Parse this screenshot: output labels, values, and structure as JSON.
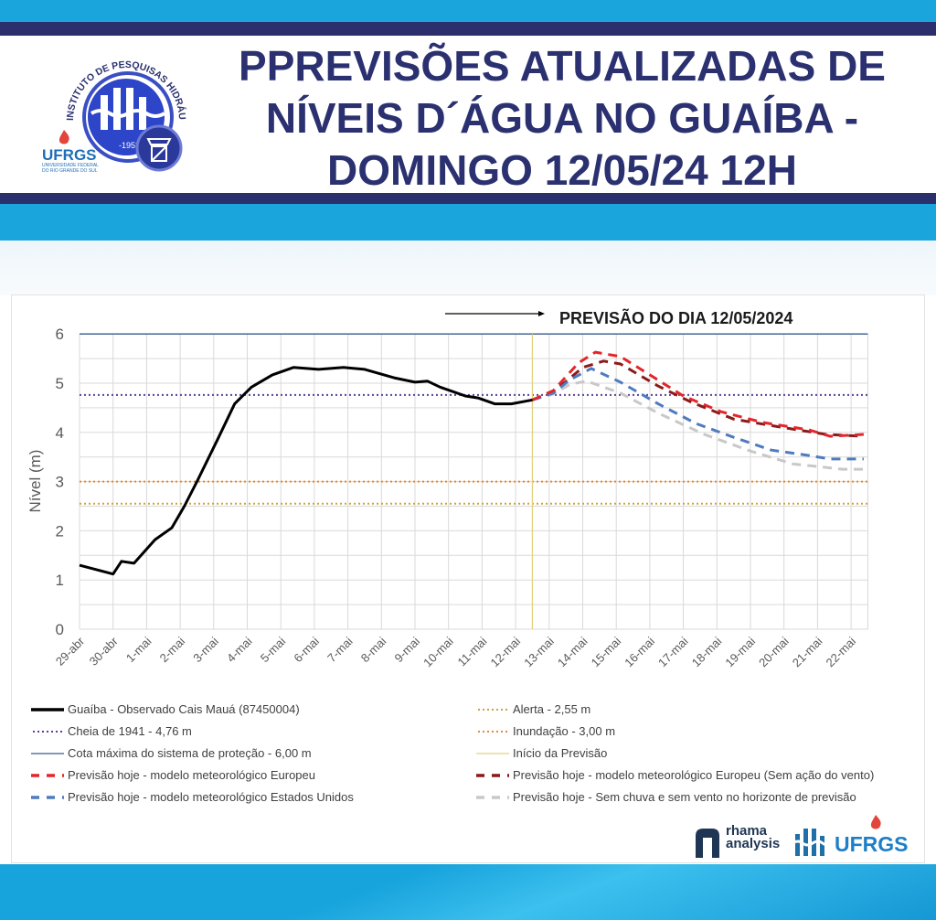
{
  "header": {
    "title_lines": [
      "PPREVISÕES ATUALIZADAS DE",
      "NÍVEIS D´ÁGUA NO GUAÍBA -",
      "DOMINGO 12/05/24 12H"
    ],
    "logo_iph": {
      "ring_text": "INSTITUTO DE PESQUISAS HIDRÁULICAS",
      "year": "-1953"
    },
    "logo_ufrgs": {
      "name": "UFRGS",
      "subtitle": "UNIVERSIDADE FEDERAL DO RIO GRANDE DO SUL"
    }
  },
  "footer": {
    "logo_rhama": [
      "rhama",
      "analysis"
    ],
    "logo_ufrgs": "UFRGS"
  },
  "colors": {
    "brand_cyan": "#1aa6dc",
    "brand_navy": "#2b2f6b",
    "observed": "#000000",
    "cheia_1941": "#5b3f99",
    "cota_maxima": "#3a5a8c",
    "alerta": "#c9a43a",
    "inundacao": "#e08a3c",
    "inicio_previsao": "#e3d27a",
    "europeu": "#e3262b",
    "europeu_sem_vento": "#8b1a1a",
    "estados_unidos": "#4f7bbf",
    "sem_chuva": "#c8c8c8"
  },
  "chart_data": {
    "type": "line",
    "annotation": "PREVISÃO DO DIA 12/05/2024",
    "ylabel": "Nível (m)",
    "xlabel": "",
    "ylim": [
      0,
      6
    ],
    "yticks": [
      "0",
      "1",
      "2",
      "3",
      "4",
      "5",
      "6"
    ],
    "xlim": [
      "2024-04-29 00:00",
      "2024-05-22 12:00"
    ],
    "xticks": [
      {
        "date": "2024-04-29",
        "label": "29-abr"
      },
      {
        "date": "2024-04-30",
        "label": "30-abr"
      },
      {
        "date": "2024-05-01",
        "label": "1-mai"
      },
      {
        "date": "2024-05-02",
        "label": "2-mai"
      },
      {
        "date": "2024-05-03",
        "label": "3-mai"
      },
      {
        "date": "2024-05-04",
        "label": "4-mai"
      },
      {
        "date": "2024-05-05",
        "label": "5-mai"
      },
      {
        "date": "2024-05-06",
        "label": "6-mai"
      },
      {
        "date": "2024-05-07",
        "label": "7-mai"
      },
      {
        "date": "2024-05-08",
        "label": "8-mai"
      },
      {
        "date": "2024-05-09",
        "label": "9-mai"
      },
      {
        "date": "2024-05-10",
        "label": "10-mai"
      },
      {
        "date": "2024-05-11",
        "label": "11-mai"
      },
      {
        "date": "2024-05-12",
        "label": "12-mai"
      },
      {
        "date": "2024-05-13",
        "label": "13-mai"
      },
      {
        "date": "2024-05-14",
        "label": "14-mai"
      },
      {
        "date": "2024-05-15",
        "label": "15-mai"
      },
      {
        "date": "2024-05-16",
        "label": "16-mai"
      },
      {
        "date": "2024-05-17",
        "label": "17-mai"
      },
      {
        "date": "2024-05-18",
        "label": "18-mai"
      },
      {
        "date": "2024-05-19",
        "label": "19-mai"
      },
      {
        "date": "2024-05-20",
        "label": "20-mai"
      },
      {
        "date": "2024-05-21",
        "label": "21-mai"
      },
      {
        "date": "2024-05-22",
        "label": "22-mai"
      }
    ],
    "grid": true,
    "legend_placement": "bottom",
    "reference_lines": [
      {
        "name": "Cheia de 1941 - 4,76 m",
        "y": 4.76,
        "style": "dotted",
        "color_key": "cheia_1941"
      },
      {
        "name": "Cota máxima do sistema de proteção - 6,00 m",
        "y": 6.0,
        "style": "solid",
        "color_key": "cota_maxima"
      },
      {
        "name": "Alerta  - 2,55 m",
        "y": 2.55,
        "style": "dotted",
        "color_key": "alerta"
      },
      {
        "name": "Inundação - 3,00 m",
        "y": 3.0,
        "style": "dotted",
        "color_key": "inundacao"
      },
      {
        "name": "Início da Previsão",
        "x": "2024-05-12 12:00",
        "style": "solid",
        "color_key": "inicio_previsao"
      }
    ],
    "series": [
      {
        "name": "Guaíba - Observado Cais Mauá (87450004)",
        "style": "solid",
        "color_key": "observed",
        "x": [
          "2024-04-29 00:00",
          "2024-04-30 00:00",
          "2024-04-30 06:00",
          "2024-04-30 15:00",
          "2024-05-01 06:00",
          "2024-05-01 18:00",
          "2024-05-02 03:00",
          "2024-05-02 12:00",
          "2024-05-03 03:00",
          "2024-05-03 15:00",
          "2024-05-04 03:00",
          "2024-05-04 18:00",
          "2024-05-05 09:00",
          "2024-05-06 03:00",
          "2024-05-06 21:00",
          "2024-05-07 12:00",
          "2024-05-08 09:00",
          "2024-05-09 00:00",
          "2024-05-09 09:00",
          "2024-05-09 18:00",
          "2024-05-10 12:00",
          "2024-05-10 21:00",
          "2024-05-11 09:00",
          "2024-05-11 21:00",
          "2024-05-12 12:00"
        ],
        "y": [
          1.3,
          1.12,
          1.38,
          1.34,
          1.82,
          2.06,
          2.5,
          3.0,
          3.87,
          4.58,
          4.92,
          5.17,
          5.32,
          5.28,
          5.32,
          5.28,
          5.11,
          5.02,
          5.04,
          4.92,
          4.74,
          4.7,
          4.58,
          4.58,
          4.66
        ]
      },
      {
        "name": "Previsão hoje - modelo meteorológico Europeu",
        "style": "dashed",
        "color_key": "europeu",
        "x": [
          "2024-05-12 12:00",
          "2024-05-13 03:00",
          "2024-05-13 21:00",
          "2024-05-14 09:00",
          "2024-05-15 03:00",
          "2024-05-16 00:00",
          "2024-05-17 00:00",
          "2024-05-18 03:00",
          "2024-05-19 09:00",
          "2024-05-20 18:00",
          "2024-05-21 09:00",
          "2024-05-22 09:00"
        ],
        "y": [
          4.66,
          4.85,
          5.41,
          5.63,
          5.54,
          5.17,
          4.74,
          4.42,
          4.2,
          4.05,
          3.92,
          3.96
        ]
      },
      {
        "name": "Previsão hoje - modelo meteorológico Estados Unidos",
        "style": "dashed",
        "color_key": "estados_unidos",
        "x": [
          "2024-05-12 12:00",
          "2024-05-13 03:00",
          "2024-05-13 15:00",
          "2024-05-14 06:00",
          "2024-05-15 03:00",
          "2024-05-16 06:00",
          "2024-05-17 09:00",
          "2024-05-18 12:00",
          "2024-05-19 15:00",
          "2024-05-20 18:00",
          "2024-05-21 09:00",
          "2024-05-22 09:00"
        ],
        "y": [
          4.66,
          4.8,
          5.07,
          5.3,
          5.02,
          4.58,
          4.18,
          3.9,
          3.64,
          3.53,
          3.46,
          3.46
        ]
      },
      {
        "name": "Previsão hoje - modelo meteorológico Europeu (Sem ação do vento)",
        "style": "dashed",
        "color_key": "europeu_sem_vento",
        "x": [
          "2024-05-12 12:00",
          "2024-05-13 03:00",
          "2024-05-14 00:00",
          "2024-05-14 15:00",
          "2024-05-15 03:00",
          "2024-05-16 06:00",
          "2024-05-17 06:00",
          "2024-05-18 12:00",
          "2024-05-19 21:00",
          "2024-05-21 06:00",
          "2024-05-22 09:00"
        ],
        "y": [
          4.66,
          4.82,
          5.32,
          5.45,
          5.39,
          4.94,
          4.61,
          4.27,
          4.11,
          3.96,
          3.92
        ]
      },
      {
        "name": "Previsão hoje - Sem chuva e sem vento no horizonte de previsão",
        "style": "dashed",
        "color_key": "sem_chuva",
        "x": [
          "2024-05-12 12:00",
          "2024-05-13 03:00",
          "2024-05-13 15:00",
          "2024-05-14 03:00",
          "2024-05-15 03:00",
          "2024-05-16 06:00",
          "2024-05-17 15:00",
          "2024-05-19 00:00",
          "2024-05-20 06:00",
          "2024-05-21 18:00",
          "2024-05-22 09:00"
        ],
        "y": [
          4.66,
          4.78,
          4.98,
          5.04,
          4.8,
          4.39,
          3.96,
          3.62,
          3.36,
          3.25,
          3.25
        ]
      }
    ]
  },
  "legend": {
    "left": [
      {
        "label": "Guaíba - Observado Cais Mauá (87450004)",
        "color_key": "observed",
        "style": "solid"
      },
      {
        "label": "Cheia de 1941 - 4,76 m",
        "color_key": "cheia_1941",
        "style": "dotted"
      },
      {
        "label": "Cota máxima do sistema de proteção - 6,00 m",
        "color_key": "cota_maxima",
        "style": "thin"
      },
      {
        "label": "Previsão hoje - modelo meteorológico Europeu",
        "color_key": "europeu",
        "style": "dashed"
      },
      {
        "label": "Previsão hoje - modelo meteorológico Estados Unidos",
        "color_key": "estados_unidos",
        "style": "dashed"
      }
    ],
    "right": [
      {
        "label": "Alerta  - 2,55 m",
        "color_key": "alerta",
        "style": "dotted"
      },
      {
        "label": "Inundação - 3,00 m",
        "color_key": "inundacao",
        "style": "dotted"
      },
      {
        "label": "Início da Previsão",
        "color_key": "inicio_previsao",
        "style": "thin"
      },
      {
        "label": "Previsão hoje - modelo meteorológico Europeu (Sem ação do vento)",
        "color_key": "europeu_sem_vento",
        "style": "dashed"
      },
      {
        "label": "Previsão hoje - Sem chuva e sem vento no horizonte de previsão",
        "color_key": "sem_chuva",
        "style": "dashed"
      }
    ]
  }
}
